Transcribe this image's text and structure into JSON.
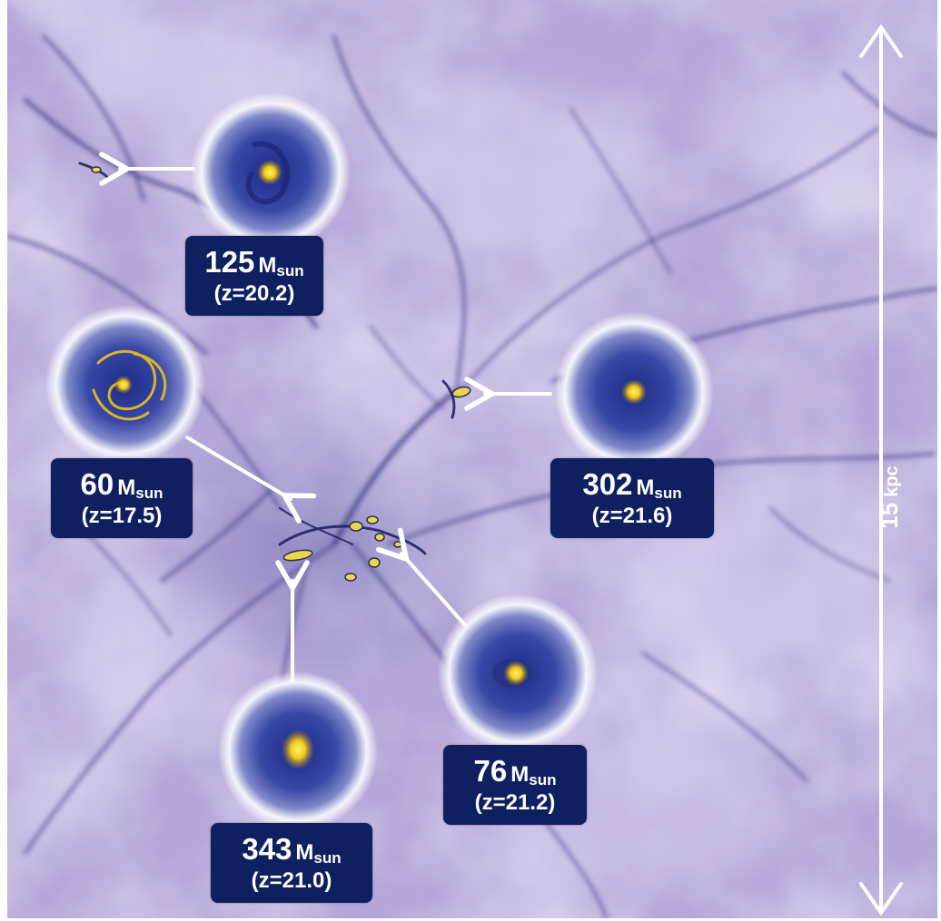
{
  "colors": {
    "background": "#b8abdb",
    "filament": "#2a2b72",
    "label_background": "#0f2061",
    "core": "#f6cf1c",
    "halo_blue": "#2f3f9e"
  },
  "scale_bar": {
    "value": "15",
    "unit": "kpc"
  },
  "halos": [
    {
      "mass": "125",
      "unit": "M",
      "unit_sub": "sun",
      "redshift": "(z=20.2)"
    },
    {
      "mass": "60",
      "unit": "M",
      "unit_sub": "sun",
      "redshift": "(z=17.5)"
    },
    {
      "mass": "302",
      "unit": "M",
      "unit_sub": "sun",
      "redshift": "(z=21.6)"
    },
    {
      "mass": "76",
      "unit": "M",
      "unit_sub": "sun",
      "redshift": "(z=21.2)"
    },
    {
      "mass": "343",
      "unit": "M",
      "unit_sub": "sun",
      "redshift": "(z=21.0)"
    }
  ]
}
